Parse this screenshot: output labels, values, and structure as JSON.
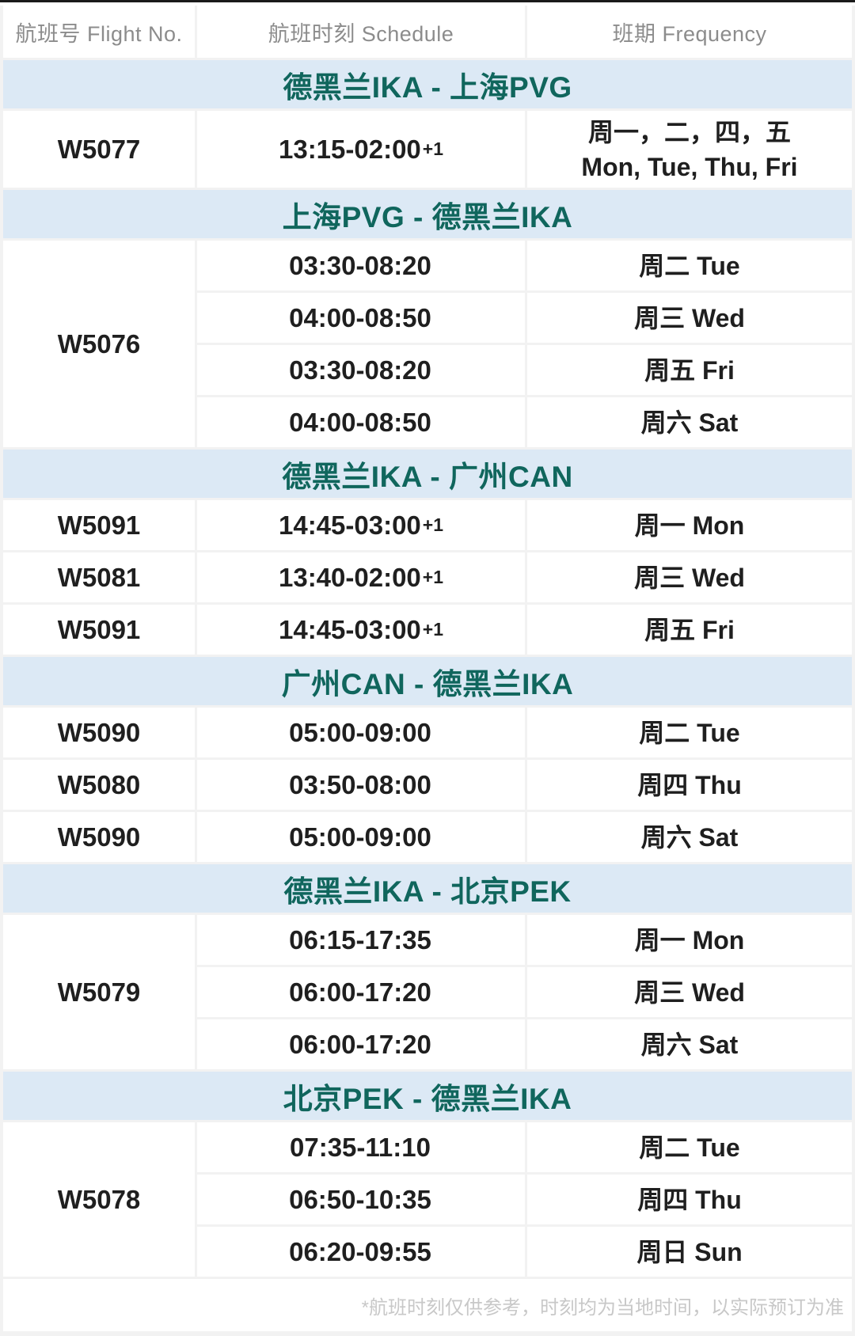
{
  "colors": {
    "route_band_bg": "#dce9f5",
    "route_text": "#10665d",
    "body_text": "#1f1f1f",
    "header_text": "#8c8c8c",
    "footnote_text": "#c8c8c8",
    "separator": "#f2f2f2",
    "top_line": "#1a1a1a"
  },
  "table": {
    "columns": [
      {
        "label": "航班号 Flight No."
      },
      {
        "label": "航班时刻 Schedule"
      },
      {
        "label": "班期 Frequency"
      }
    ],
    "sections": [
      {
        "route": "德黑兰IKA - 上海PVG",
        "groups": [
          {
            "flight": "W5077",
            "rows": [
              {
                "time": "13:15-02:00",
                "suffix": "+1",
                "freq_lines": [
                  "周一，二，四，五",
                  "Mon, Tue, Thu, Fri"
                ]
              }
            ]
          }
        ]
      },
      {
        "route": "上海PVG - 德黑兰IKA",
        "groups": [
          {
            "flight": "W5076",
            "rows": [
              {
                "time": "03:30-08:20",
                "freq_lines": [
                  "周二 Tue"
                ]
              },
              {
                "time": "04:00-08:50",
                "freq_lines": [
                  "周三 Wed"
                ]
              },
              {
                "time": "03:30-08:20",
                "freq_lines": [
                  "周五 Fri"
                ]
              },
              {
                "time": "04:00-08:50",
                "freq_lines": [
                  "周六 Sat"
                ]
              }
            ]
          }
        ]
      },
      {
        "route": "德黑兰IKA - 广州CAN",
        "groups": [
          {
            "flight": "W5091",
            "rows": [
              {
                "time": "14:45-03:00",
                "suffix": "+1",
                "freq_lines": [
                  "周一 Mon"
                ]
              }
            ]
          },
          {
            "flight": "W5081",
            "rows": [
              {
                "time": "13:40-02:00",
                "suffix": "+1",
                "freq_lines": [
                  "周三 Wed"
                ]
              }
            ]
          },
          {
            "flight": "W5091",
            "rows": [
              {
                "time": "14:45-03:00",
                "suffix": "+1",
                "freq_lines": [
                  "周五 Fri"
                ]
              }
            ]
          }
        ]
      },
      {
        "route": "广州CAN - 德黑兰IKA",
        "groups": [
          {
            "flight": "W5090",
            "rows": [
              {
                "time": "05:00-09:00",
                "freq_lines": [
                  "周二 Tue"
                ]
              }
            ]
          },
          {
            "flight": "W5080",
            "rows": [
              {
                "time": "03:50-08:00",
                "freq_lines": [
                  "周四 Thu"
                ]
              }
            ]
          },
          {
            "flight": "W5090",
            "rows": [
              {
                "time": "05:00-09:00",
                "freq_lines": [
                  "周六 Sat"
                ]
              }
            ]
          }
        ]
      },
      {
        "route": "德黑兰IKA - 北京PEK",
        "groups": [
          {
            "flight": "W5079",
            "rows": [
              {
                "time": "06:15-17:35",
                "freq_lines": [
                  "周一 Mon"
                ]
              },
              {
                "time": "06:00-17:20",
                "freq_lines": [
                  "周三 Wed"
                ]
              },
              {
                "time": "06:00-17:20",
                "freq_lines": [
                  "周六 Sat"
                ]
              }
            ]
          }
        ]
      },
      {
        "route": "北京PEK - 德黑兰IKA",
        "groups": [
          {
            "flight": "W5078",
            "rows": [
              {
                "time": "07:35-11:10",
                "freq_lines": [
                  "周二 Tue"
                ]
              },
              {
                "time": "06:50-10:35",
                "freq_lines": [
                  "周四 Thu"
                ]
              },
              {
                "time": "06:20-09:55",
                "freq_lines": [
                  "周日 Sun"
                ]
              }
            ]
          }
        ]
      }
    ],
    "footnote": "*航班时刻仅供参考，时刻均为当地时间，以实际预订为准"
  }
}
